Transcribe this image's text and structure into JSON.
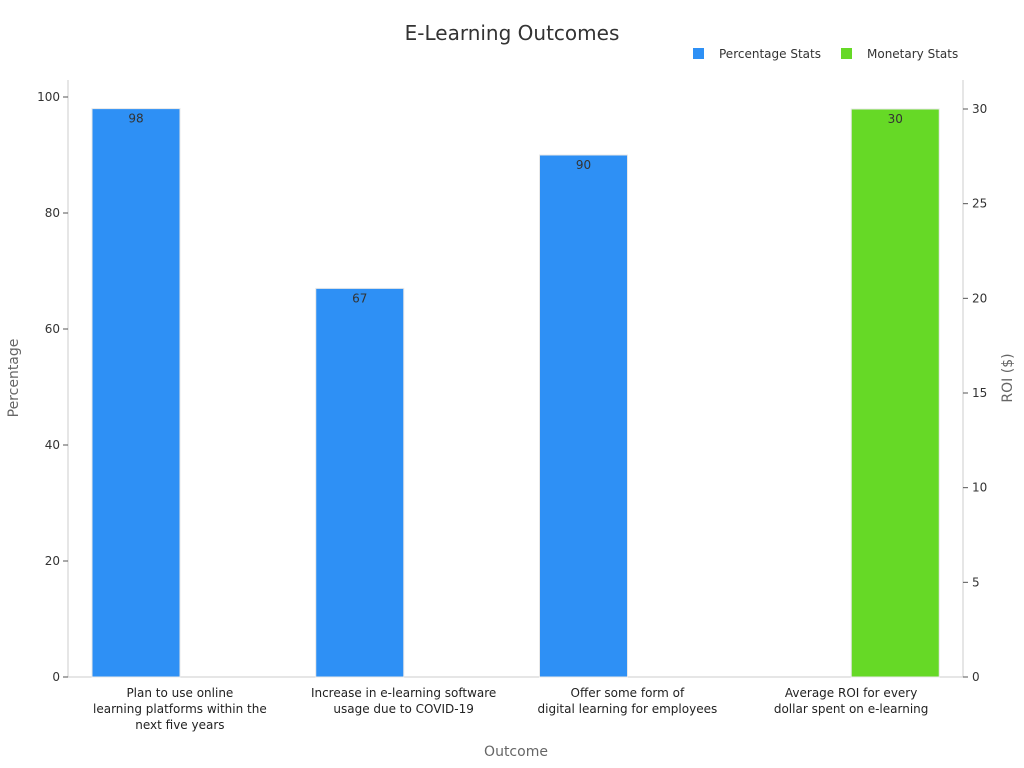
{
  "chart_data": {
    "type": "bar",
    "title": "E-Learning Outcomes",
    "xlabel": "Outcome",
    "ylabel": "Percentage",
    "y2label": "ROI ($)",
    "ylim": [
      0,
      100
    ],
    "y2lim": [
      0,
      30
    ],
    "yticks": [
      "0",
      "20",
      "40",
      "60",
      "80",
      "100"
    ],
    "y2ticks": [
      "0",
      "5",
      "10",
      "15",
      "20",
      "25",
      "30"
    ],
    "categories": [
      [
        "Plan to use online",
        "learning platforms within the",
        "next five years"
      ],
      [
        "Increase in e-learning software",
        "usage due to COVID-19"
      ],
      [
        "Offer some form of",
        "digital learning for employees"
      ],
      [
        "Average ROI for every",
        "dollar spent on e-learning"
      ]
    ],
    "series": [
      {
        "name": "Percentage Stats",
        "axis": "left",
        "color": "#2e90f5",
        "values": [
          98,
          67,
          90,
          null
        ]
      },
      {
        "name": "Monetary Stats",
        "axis": "right",
        "color": "#66d926",
        "values": [
          null,
          null,
          null,
          30
        ]
      }
    ],
    "legend_position": "top-right",
    "grid": false
  }
}
